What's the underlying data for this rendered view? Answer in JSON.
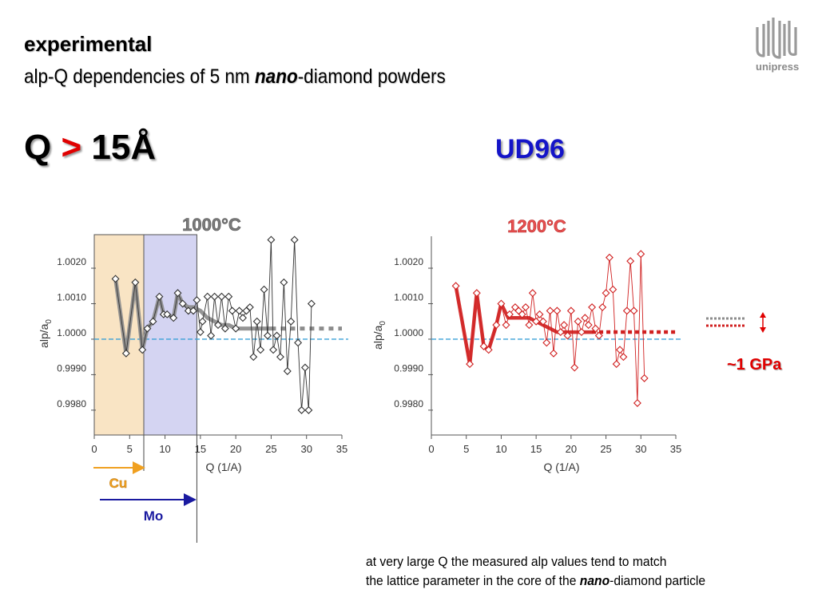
{
  "header": {
    "title": "experimental",
    "subtitle_pre": "alp-Q dependencies of 5 nm ",
    "subtitle_em": "nano",
    "subtitle_post": "-diamond powders"
  },
  "condition": {
    "q_label": "Q",
    "gt": ">",
    "q_value": "15Å"
  },
  "sample": "UD96",
  "logo": {
    "text": "unipress",
    "icon": "unipress-logo-icon"
  },
  "pressure_note": "~1 GPa",
  "footnote": {
    "line1": "at very large Q the measured alp values tend to match",
    "line2_pre": "the lattice parameter in the core of the ",
    "line2_em": "nano",
    "line2_post": "-diamond particle"
  },
  "colors": {
    "left_series": "#333333",
    "left_fit": "#8c8c8c",
    "right_series": "#d02020",
    "cu_band": "#f9e4c4",
    "mo_band": "#d4d4f2",
    "cu_arrow": "#f0a020",
    "mo_arrow": "#1a1aa0",
    "reference_line": "#3aa0d8"
  },
  "chart_data": [
    {
      "type": "scatter",
      "title": "1000°C",
      "xlabel": "Q (1/A)",
      "ylabel": "alp/a",
      "ylabel_sub": "0",
      "xlim": [
        0,
        35
      ],
      "ylim": [
        0.9973,
        1.0029
      ],
      "xticks": [
        "0",
        "5",
        "10",
        "15",
        "20",
        "25",
        "30",
        "35"
      ],
      "yticks": [
        "1.0020",
        "1.0010",
        "1.0000",
        "0.9990",
        "0.9980"
      ],
      "reference_y": 1.0,
      "bands": [
        {
          "name": "Cu",
          "from": 0,
          "to": 7
        },
        {
          "name": "Mo",
          "from": 7,
          "to": 14.5
        }
      ],
      "series": [
        {
          "x": [
            3,
            4.5,
            5.8,
            6.8,
            7.5,
            8.3,
            9.2,
            9.8,
            10.3,
            11.2,
            11.8,
            12.5,
            13.3,
            14,
            14.5,
            15,
            15.3,
            16,
            16.5,
            17,
            17.5,
            18,
            18.5,
            19,
            19.5,
            20,
            20.5,
            21,
            21.5,
            22,
            22.5,
            23,
            23.5,
            24,
            24.5,
            25,
            25.3,
            25.8,
            26.3,
            26.8,
            27.3,
            27.8,
            28.3,
            28.8,
            29.3,
            29.8,
            30.3,
            30.7
          ],
          "y": [
            1.0017,
            0.9996,
            1.0016,
            0.9997,
            1.0003,
            1.0005,
            1.0012,
            1.0007,
            1.0007,
            1.0006,
            1.0013,
            1.001,
            1.0008,
            1.0008,
            1.0011,
            1.0002,
            1.0005,
            1.0012,
            1.0001,
            1.0012,
            1.0004,
            1.0012,
            1.0003,
            1.0012,
            1.0008,
            1.0003,
            1.0008,
            1.0006,
            1.0008,
            1.0009,
            0.9995,
            1.0005,
            0.9997,
            1.0014,
            1.0001,
            1.0028,
            0.9997,
            1.0001,
            0.9995,
            1.0016,
            0.9991,
            1.0005,
            1.0028,
            0.9999,
            0.998,
            0.9992,
            0.998,
            1.001
          ]
        }
      ],
      "fit_x": [
        3,
        4.5,
        5.8,
        6.8,
        7.5,
        8.3,
        9.2,
        9.8,
        10.3,
        11.2,
        11.8,
        12.5,
        13.3,
        14,
        15,
        16,
        17,
        18,
        19,
        20,
        21,
        22,
        23,
        24,
        25
      ],
      "fit_y": [
        1.0017,
        0.9996,
        1.0016,
        0.9997,
        1.0003,
        1.0005,
        1.0012,
        1.0007,
        1.0007,
        1.0006,
        1.0013,
        1.001,
        1.0009,
        1.0009,
        1.0008,
        1.0006,
        1.0005,
        1.0004,
        1.0004,
        1.0003,
        1.0003,
        1.0003,
        1.0003,
        1.0003,
        1.0003
      ],
      "extrapolation": {
        "from": 25,
        "to": 35,
        "y": 1.0003
      }
    },
    {
      "type": "scatter",
      "title": "1200°C",
      "xlabel": "Q (1/A)",
      "ylabel": "alp/a",
      "ylabel_sub": "0",
      "xlim": [
        0,
        35
      ],
      "ylim": [
        0.9973,
        1.0029
      ],
      "xticks": [
        "0",
        "5",
        "10",
        "15",
        "20",
        "25",
        "30",
        "35"
      ],
      "yticks": [
        "1.0020",
        "1.0010",
        "1.0000",
        "0.9990",
        "0.9980"
      ],
      "reference_y": 1.0,
      "series": [
        {
          "x": [
            3.5,
            5.5,
            6.5,
            7.5,
            8.2,
            9.3,
            10,
            10.7,
            11.2,
            12,
            12.5,
            13,
            13.5,
            14,
            14.5,
            15,
            15.5,
            16,
            16.5,
            17,
            17.5,
            18,
            18.5,
            19,
            19.5,
            20,
            20.5,
            21,
            21.5,
            22,
            22.5,
            23,
            23.5,
            24,
            24.5,
            25,
            25.5,
            26,
            26.5,
            27,
            27.5,
            28,
            28.5,
            29,
            29.5,
            30,
            30.5
          ],
          "y": [
            1.0015,
            0.9993,
            1.0013,
            0.9998,
            0.9997,
            1.0004,
            1.001,
            1.0004,
            1.0007,
            1.0009,
            1.0008,
            1.0007,
            1.0009,
            1.0004,
            1.0013,
            1.0005,
            1.0007,
            1.0005,
            0.9999,
            1.0008,
            0.9996,
            1.0008,
            1.0002,
            1.0004,
            1.0001,
            1.0008,
            0.9992,
            1.0005,
            1.0002,
            1.0006,
            1.0004,
            1.0009,
            1.0003,
            1.0001,
            1.0009,
            1.0013,
            1.0023,
            1.0014,
            0.9993,
            0.9997,
            0.9995,
            1.0008,
            1.0022,
            1.0008,
            0.9982,
            1.0024,
            0.9989
          ]
        }
      ],
      "fit_x": [
        3.5,
        5.5,
        6.5,
        7.5,
        8.2,
        9.3,
        10,
        11,
        12,
        13,
        14,
        15,
        16,
        17,
        18,
        19,
        20,
        21,
        22,
        23
      ],
      "fit_y": [
        1.0015,
        0.9993,
        1.0013,
        0.9998,
        0.9997,
        1.0004,
        1.001,
        1.0006,
        1.0006,
        1.0006,
        1.0006,
        1.0005,
        1.0004,
        1.0003,
        1.0002,
        1.0002,
        1.0002,
        1.0002,
        1.0002,
        1.0002
      ],
      "extrapolation": {
        "from": 23,
        "to": 35,
        "y": 1.0002
      }
    }
  ]
}
